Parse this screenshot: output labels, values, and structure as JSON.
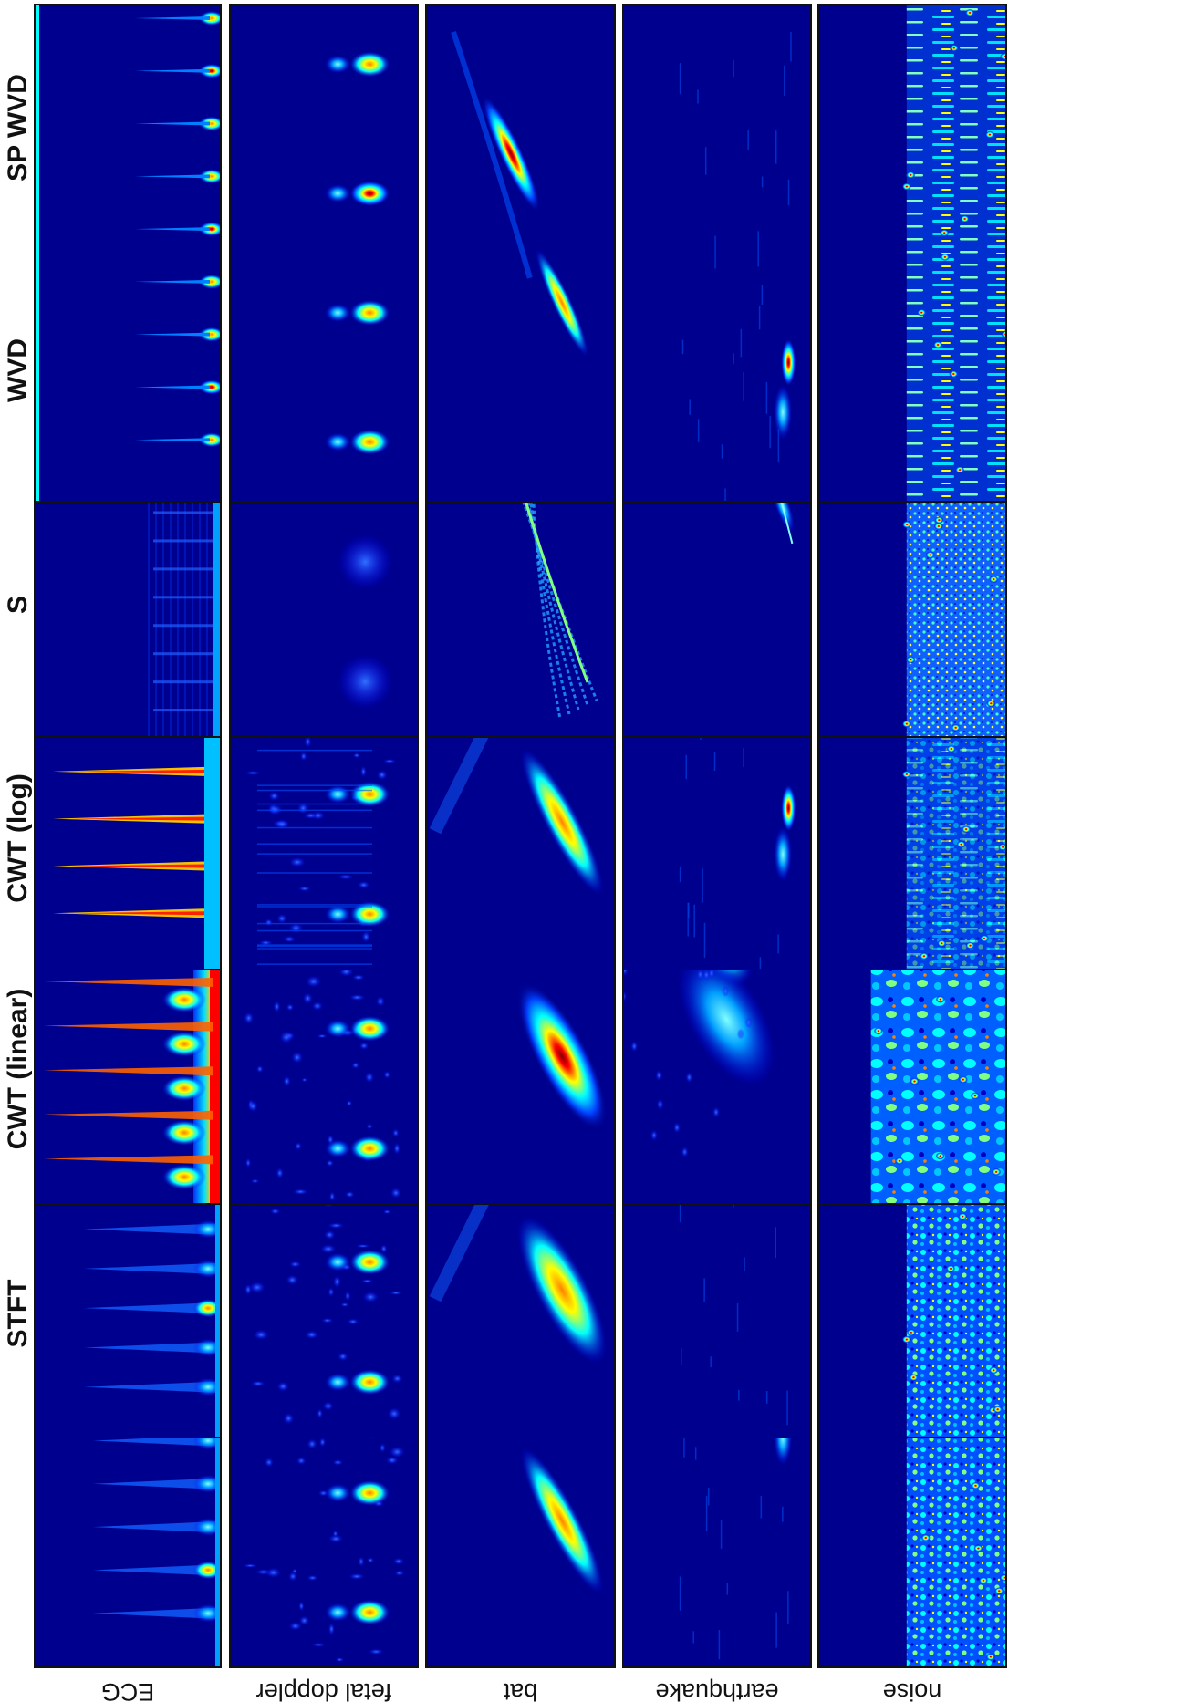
{
  "figure": {
    "methods": [
      "STFT",
      "CWT (linear)",
      "CWT (log)",
      "S",
      "WVD",
      "SP WVD"
    ],
    "signals": [
      "ECG",
      "fetal doppler",
      "bat",
      "earthquake",
      "noise"
    ],
    "colors": {
      "background": "#00008f",
      "frame": "#111111",
      "colormap": [
        "#00008f",
        "#0000ff",
        "#0080ff",
        "#00ffff",
        "#80ff80",
        "#ffff00",
        "#ff8000",
        "#ff0000",
        "#800000"
      ]
    },
    "orientation": "rotated 90 degrees counter-clockwise",
    "colormap_name": "jet"
  }
}
